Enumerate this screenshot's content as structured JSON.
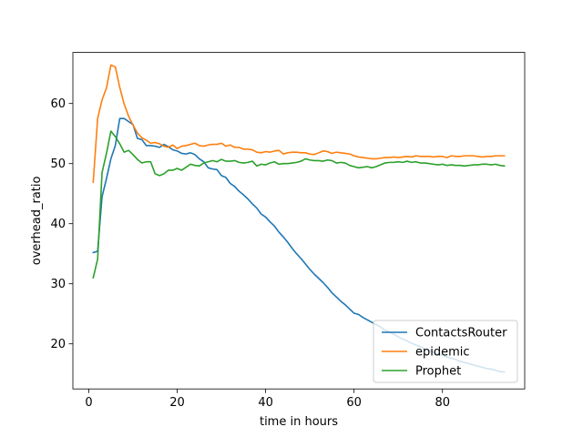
{
  "chart_data": {
    "type": "line",
    "xlabel": "time in hours",
    "ylabel": "overhead_ratio",
    "xlim": [
      -3.6,
      98.6
    ],
    "ylim": [
      12.5,
      68.5
    ],
    "xticks": [
      0,
      20,
      40,
      60,
      80
    ],
    "yticks": [
      20,
      30,
      40,
      50,
      60
    ],
    "grid": false,
    "legend_position": "lower-right",
    "series": [
      {
        "name": "ContactsRouter",
        "color": "#1f77b4",
        "x": [
          1,
          2,
          3,
          4,
          5,
          6,
          7,
          8,
          9,
          10,
          11,
          12,
          13,
          14,
          15,
          16,
          17,
          18,
          19,
          20,
          21,
          22,
          23,
          24,
          25,
          26,
          27,
          28,
          29,
          30,
          31,
          32,
          33,
          34,
          35,
          36,
          37,
          38,
          39,
          40,
          41,
          42,
          43,
          44,
          45,
          46,
          47,
          48,
          49,
          50,
          51,
          52,
          53,
          54,
          55,
          56,
          57,
          58,
          59,
          60,
          61,
          62,
          63,
          64,
          65,
          66,
          67,
          68,
          69,
          70,
          71,
          72,
          73,
          74,
          75,
          76,
          77,
          78,
          79,
          80,
          81,
          82,
          83,
          84,
          85,
          86,
          87,
          88,
          89,
          90,
          91,
          92,
          93,
          94
        ],
        "y": [
          35.2,
          35.4,
          44.5,
          47.5,
          50.8,
          53.0,
          57.5,
          57.5,
          57.0,
          56.5,
          54.2,
          54.0,
          53.0,
          53.0,
          52.9,
          52.7,
          53.2,
          52.8,
          52.3,
          52.1,
          51.7,
          51.6,
          51.8,
          51.5,
          50.8,
          50.3,
          49.3,
          49.1,
          49.0,
          48.0,
          47.7,
          46.7,
          46.2,
          45.4,
          44.8,
          44.1,
          43.3,
          42.6,
          41.6,
          41.1,
          40.3,
          39.6,
          38.6,
          37.8,
          36.9,
          35.9,
          35.0,
          34.2,
          33.3,
          32.4,
          31.6,
          30.9,
          30.2,
          29.4,
          28.5,
          27.8,
          27.1,
          26.5,
          25.8,
          25.1,
          24.9,
          24.4,
          24.0,
          23.6,
          23.2,
          22.8,
          22.3,
          22.0,
          21.6,
          21.2,
          20.8,
          20.5,
          20.1,
          19.8,
          19.5,
          19.2,
          18.9,
          18.6,
          18.3,
          18.1,
          17.8,
          17.6,
          17.4,
          17.1,
          16.9,
          16.7,
          16.5,
          16.3,
          16.1,
          15.9,
          15.8,
          15.6,
          15.4,
          15.3
        ]
      },
      {
        "name": "epidemic",
        "color": "#ff7f0e",
        "x": [
          1,
          2,
          3,
          4,
          5,
          6,
          7,
          8,
          9,
          10,
          11,
          12,
          13,
          14,
          15,
          16,
          17,
          18,
          19,
          20,
          21,
          22,
          23,
          24,
          25,
          26,
          27,
          28,
          29,
          30,
          31,
          32,
          33,
          34,
          35,
          36,
          37,
          38,
          39,
          40,
          41,
          42,
          43,
          44,
          45,
          46,
          47,
          48,
          49,
          50,
          51,
          52,
          53,
          54,
          55,
          56,
          57,
          58,
          59,
          60,
          61,
          62,
          63,
          64,
          65,
          66,
          67,
          68,
          69,
          70,
          71,
          72,
          73,
          74,
          75,
          76,
          77,
          78,
          79,
          80,
          81,
          82,
          83,
          84,
          85,
          86,
          87,
          88,
          89,
          90,
          91,
          92,
          93,
          94
        ],
        "y": [
          46.9,
          57.5,
          60.6,
          62.6,
          66.4,
          66.1,
          62.7,
          59.9,
          57.9,
          56.4,
          55.1,
          54.3,
          53.9,
          53.4,
          53.5,
          53.3,
          52.9,
          52.7,
          53.1,
          52.5,
          52.9,
          53.0,
          53.2,
          53.4,
          53.0,
          52.9,
          53.1,
          53.2,
          53.2,
          53.4,
          52.9,
          53.1,
          52.7,
          52.7,
          52.4,
          52.4,
          52.3,
          51.9,
          51.8,
          52.0,
          51.9,
          52.1,
          52.2,
          51.6,
          51.8,
          51.9,
          51.9,
          51.8,
          51.8,
          51.6,
          51.5,
          51.8,
          52.1,
          52.0,
          51.7,
          51.9,
          51.8,
          51.7,
          51.6,
          51.3,
          51.1,
          51.0,
          50.9,
          50.8,
          50.8,
          50.9,
          51.0,
          51.0,
          51.1,
          51.0,
          51.1,
          51.2,
          51.1,
          51.3,
          51.2,
          51.2,
          51.2,
          51.1,
          51.2,
          51.2,
          51.0,
          51.3,
          51.2,
          51.2,
          51.3,
          51.3,
          51.3,
          51.2,
          51.1,
          51.2,
          51.2,
          51.3,
          51.3,
          51.3
        ]
      },
      {
        "name": "Prophet",
        "color": "#2ca02c",
        "x": [
          1,
          2,
          3,
          4,
          5,
          6,
          7,
          8,
          9,
          10,
          11,
          12,
          13,
          14,
          15,
          16,
          17,
          18,
          19,
          20,
          21,
          22,
          23,
          24,
          25,
          26,
          27,
          28,
          29,
          30,
          31,
          32,
          33,
          34,
          35,
          36,
          37,
          38,
          39,
          40,
          41,
          42,
          43,
          44,
          45,
          46,
          47,
          48,
          49,
          50,
          51,
          52,
          53,
          54,
          55,
          56,
          57,
          58,
          59,
          60,
          61,
          62,
          63,
          64,
          65,
          66,
          67,
          68,
          69,
          70,
          71,
          72,
          73,
          74,
          75,
          76,
          77,
          78,
          79,
          80,
          81,
          82,
          83,
          84,
          85,
          86,
          87,
          88,
          89,
          90,
          91,
          92,
          93,
          94
        ],
        "y": [
          31.0,
          34.1,
          48.5,
          51.7,
          55.4,
          54.5,
          53.3,
          51.9,
          52.2,
          51.5,
          50.7,
          50.1,
          50.3,
          50.3,
          48.3,
          48.0,
          48.3,
          48.9,
          48.9,
          49.2,
          48.9,
          49.4,
          49.9,
          49.7,
          49.6,
          50.1,
          50.3,
          50.5,
          50.3,
          50.7,
          50.4,
          50.4,
          50.5,
          50.2,
          50.1,
          50.2,
          50.4,
          49.6,
          49.9,
          49.8,
          50.1,
          50.3,
          49.9,
          50.0,
          50.0,
          50.1,
          50.2,
          50.4,
          50.8,
          50.6,
          50.5,
          50.5,
          50.4,
          50.6,
          50.5,
          50.1,
          50.2,
          50.1,
          49.7,
          49.5,
          49.3,
          49.4,
          49.5,
          49.3,
          49.5,
          49.8,
          50.1,
          50.2,
          50.2,
          50.3,
          50.2,
          50.4,
          50.2,
          50.3,
          50.1,
          50.1,
          50.0,
          49.9,
          49.8,
          49.9,
          49.7,
          49.8,
          49.7,
          49.7,
          49.6,
          49.7,
          49.8,
          49.8,
          49.9,
          49.9,
          49.8,
          49.9,
          49.7,
          49.6
        ]
      }
    ]
  }
}
